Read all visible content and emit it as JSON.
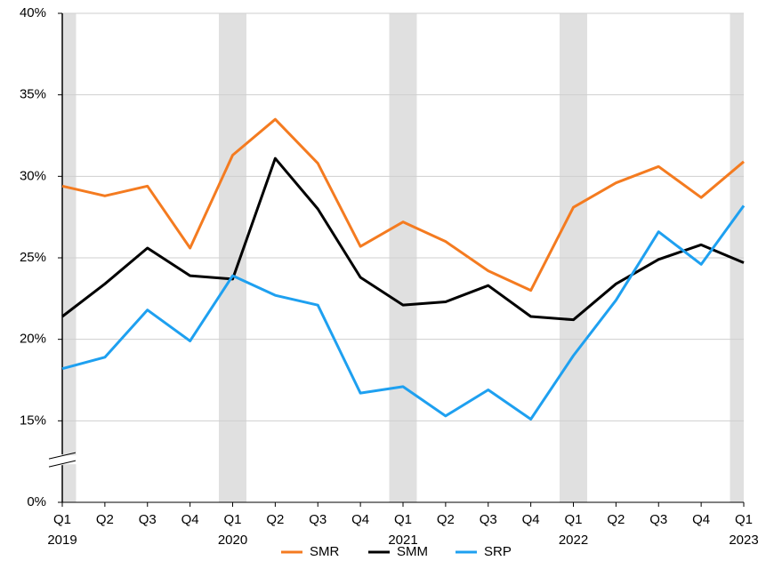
{
  "chart_data": {
    "type": "line",
    "categories": [
      "Q1",
      "Q2",
      "Q3",
      "Q4",
      "Q1",
      "Q2",
      "Q3",
      "Q4",
      "Q1",
      "Q2",
      "Q3",
      "Q4",
      "Q1",
      "Q2",
      "Q3",
      "Q4",
      "Q1"
    ],
    "years": [
      "2019",
      "2020",
      "2021",
      "2022",
      "2023"
    ],
    "series": [
      {
        "name": "SMR",
        "color": "#f47b20",
        "values": [
          29.4,
          28.8,
          29.4,
          25.6,
          31.3,
          33.5,
          30.8,
          25.7,
          27.2,
          26.0,
          24.2,
          23.0,
          28.1,
          29.6,
          30.6,
          28.7,
          30.9
        ]
      },
      {
        "name": "SMM",
        "color": "#000000",
        "values": [
          21.4,
          23.4,
          25.6,
          23.9,
          23.7,
          31.1,
          28.0,
          23.8,
          22.1,
          22.3,
          23.3,
          21.4,
          21.2,
          23.4,
          24.9,
          25.8,
          24.7
        ]
      },
      {
        "name": "SRP",
        "color": "#1ea0f0",
        "values": [
          18.2,
          18.9,
          21.8,
          19.9,
          23.9,
          22.7,
          22.1,
          16.7,
          17.1,
          15.3,
          16.9,
          15.1,
          19.0,
          22.4,
          26.6,
          24.6,
          28.2
        ]
      }
    ],
    "ylim": [
      0,
      40
    ],
    "yticks": [
      {
        "value": 0,
        "label": "0%"
      },
      {
        "value": 15,
        "label": "15%"
      },
      {
        "value": 20,
        "label": "20%"
      },
      {
        "value": 25,
        "label": "25%"
      },
      {
        "value": 30,
        "label": "30%"
      },
      {
        "value": 35,
        "label": "35%"
      },
      {
        "value": 40,
        "label": "40%"
      }
    ],
    "axis_break": true,
    "grid": true,
    "legend": "bottom"
  }
}
